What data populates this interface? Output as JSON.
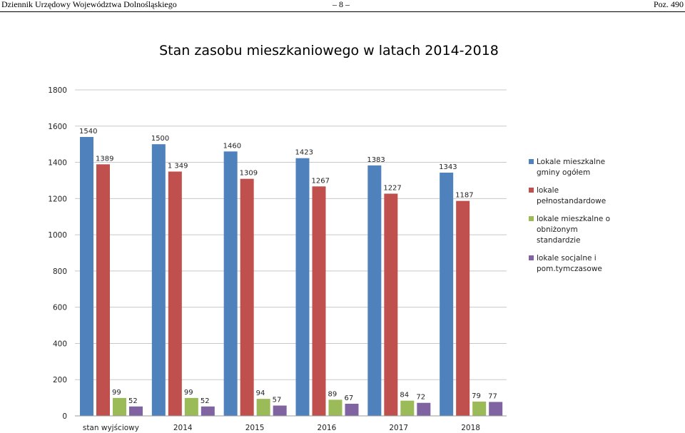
{
  "header": {
    "left": "Dziennik Urzędowy Województwa Dolnośląskiego",
    "center": "– 8 –",
    "right": "Poz. 490"
  },
  "chart_data": {
    "type": "bar",
    "title": "Stan zasobu mieszkaniowego w latach 2014-2018",
    "xlabel": "",
    "ylabel": "",
    "ylim": [
      0,
      1800
    ],
    "yticks": [
      0,
      200,
      400,
      600,
      800,
      1000,
      1200,
      1400,
      1600,
      1800
    ],
    "grid": true,
    "legend_position": "right",
    "categories": [
      "stan wyjściowy",
      "2014",
      "2015",
      "2016",
      "2017",
      "2018"
    ],
    "series": [
      {
        "name_lines": [
          "Lokale mieszkalne",
          "gminy ogółem"
        ],
        "color": "#4F81BD",
        "values": [
          1540,
          1500,
          1460,
          1423,
          1383,
          1343
        ],
        "labels": [
          "1540",
          "1500",
          "1460",
          "1423",
          "1383",
          "1343"
        ]
      },
      {
        "name_lines": [
          "lokale",
          "pełnostandardowe"
        ],
        "color": "#C0504D",
        "values": [
          1389,
          1349,
          1309,
          1267,
          1227,
          1187
        ],
        "labels": [
          "1389",
          "1 349",
          "1309",
          "1267",
          "1227",
          "1187"
        ]
      },
      {
        "name_lines": [
          "lokale mieszkalne o",
          "obniżonym",
          "standardzie"
        ],
        "color": "#9BBB59",
        "values": [
          99,
          99,
          94,
          89,
          84,
          79
        ],
        "labels": [
          "99",
          "99",
          "94",
          "89",
          "84",
          "79"
        ]
      },
      {
        "name_lines": [
          "lokale socjalne i",
          "pom.tymczasowe"
        ],
        "color": "#8064A2",
        "values": [
          52,
          52,
          57,
          67,
          72,
          77
        ],
        "labels": [
          "52",
          "52",
          "57",
          "67",
          "72",
          "77"
        ]
      }
    ]
  }
}
